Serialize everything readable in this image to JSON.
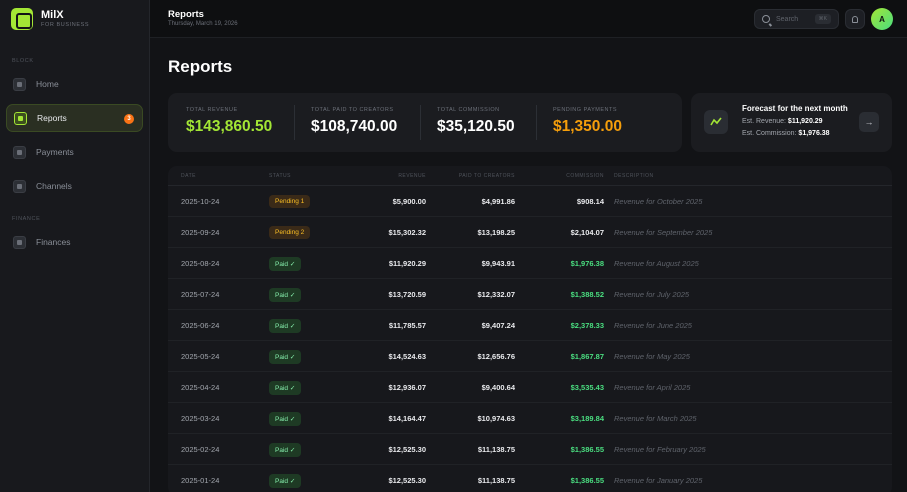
{
  "brand": {
    "name": "MilX",
    "subtitle": "FOR BUSINESS"
  },
  "sidebar": {
    "section1": "BLOCK",
    "section2": "FINANCE",
    "items": [
      {
        "label": "Home",
        "icon": "grid-icon"
      },
      {
        "label": "Reports",
        "icon": "report-icon",
        "badge": "3"
      },
      {
        "label": "Payments",
        "icon": "card-icon"
      },
      {
        "label": "Channels",
        "icon": "channel-icon"
      },
      {
        "label": "Finances",
        "icon": "globe-icon"
      }
    ]
  },
  "topbar": {
    "title": "Reports",
    "date": "Thursday, March 19, 2026",
    "search_placeholder": "Search",
    "search_shortcut": "⌘K",
    "avatar_initial": "A"
  },
  "page": {
    "title": "Reports"
  },
  "stats": [
    {
      "label": "TOTAL REVENUE",
      "value": "$143,860.50",
      "color": "#a3e635"
    },
    {
      "label": "TOTAL PAID TO CREATORS",
      "value": "$108,740.00",
      "color": "#ffffff"
    },
    {
      "label": "TOTAL COMMISSION",
      "value": "$35,120.50",
      "color": "#ffffff"
    },
    {
      "label": "PENDING PAYMENTS",
      "value": "$1,350.00",
      "color": "#f59e0b"
    }
  ],
  "forecast": {
    "title": "Forecast for the next month",
    "revenue_label": "Est. Revenue:",
    "revenue_value": "$11,920.29",
    "commission_label": "Est. Commission:",
    "commission_value": "$1,976.38"
  },
  "table": {
    "headers": [
      "DATE",
      "STATUS",
      "REVENUE",
      "PAID TO CREATORS",
      "COMMISSION",
      "DESCRIPTION"
    ],
    "rows": [
      {
        "date": "2025-10-24",
        "status": "Pending 1",
        "type": "pending",
        "revenue": "$5,900.00",
        "paid": "$4,991.86",
        "commission": "$908.14",
        "description": "Revenue for October 2025"
      },
      {
        "date": "2025-09-24",
        "status": "Pending 2",
        "type": "pending",
        "revenue": "$15,302.32",
        "paid": "$13,198.25",
        "commission": "$2,104.07",
        "description": "Revenue for September 2025"
      },
      {
        "date": "2025-08-24",
        "status": "Paid ✓",
        "type": "paid",
        "revenue": "$11,920.29",
        "paid": "$9,943.91",
        "commission": "$1,976.38",
        "description": "Revenue for August 2025"
      },
      {
        "date": "2025-07-24",
        "status": "Paid ✓",
        "type": "paid",
        "revenue": "$13,720.59",
        "paid": "$12,332.07",
        "commission": "$1,388.52",
        "description": "Revenue for July 2025"
      },
      {
        "date": "2025-06-24",
        "status": "Paid ✓",
        "type": "paid",
        "revenue": "$11,785.57",
        "paid": "$9,407.24",
        "commission": "$2,378.33",
        "description": "Revenue for June 2025"
      },
      {
        "date": "2025-05-24",
        "status": "Paid ✓",
        "type": "paid",
        "revenue": "$14,524.63",
        "paid": "$12,656.76",
        "commission": "$1,867.87",
        "description": "Revenue for May 2025"
      },
      {
        "date": "2025-04-24",
        "status": "Paid ✓",
        "type": "paid",
        "revenue": "$12,936.07",
        "paid": "$9,400.64",
        "commission": "$3,535.43",
        "description": "Revenue for April 2025"
      },
      {
        "date": "2025-03-24",
        "status": "Paid ✓",
        "type": "paid",
        "revenue": "$14,164.47",
        "paid": "$10,974.63",
        "commission": "$3,189.84",
        "description": "Revenue for March 2025"
      },
      {
        "date": "2025-02-24",
        "status": "Paid ✓",
        "type": "paid",
        "revenue": "$12,525.30",
        "paid": "$11,138.75",
        "commission": "$1,386.55",
        "description": "Revenue for February 2025"
      },
      {
        "date": "2025-01-24",
        "status": "Paid ✓",
        "type": "paid",
        "revenue": "$12,525.30",
        "paid": "$11,138.75",
        "commission": "$1,386.55",
        "description": "Revenue for January 2025"
      }
    ]
  },
  "colors": {
    "accent": "#a3e635",
    "pending": "#f59e0b",
    "paid_commission": "#4ade80"
  }
}
